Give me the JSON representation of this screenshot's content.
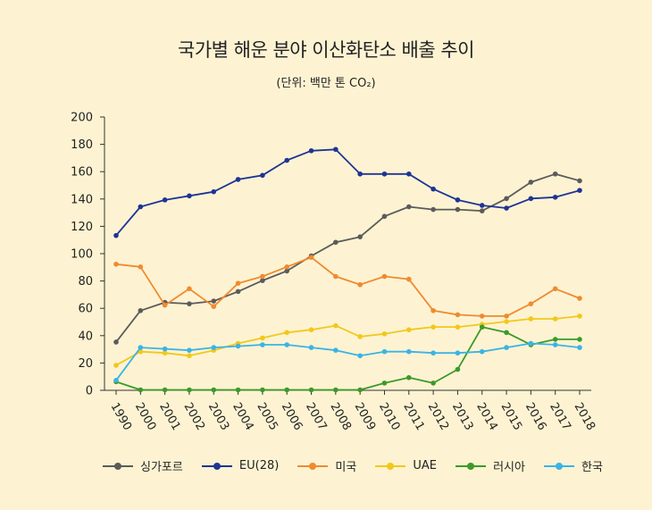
{
  "chart_data": {
    "type": "line",
    "title": "국가별 해운 분야 이산화탄소 배출 추이",
    "subtitle": "(단위: 백만 톤 CO₂)",
    "x": [
      "1990",
      "2000",
      "2001",
      "2002",
      "2003",
      "2004",
      "2005",
      "2006",
      "2007",
      "2008",
      "2009",
      "2010",
      "2011",
      "2012",
      "2013",
      "2014",
      "2015",
      "2016",
      "2017",
      "2018"
    ],
    "ylim": [
      0,
      200
    ],
    "yticks": [
      0,
      20,
      40,
      60,
      80,
      100,
      120,
      140,
      160,
      180,
      200
    ],
    "grid": false,
    "legend_position": "bottom",
    "series": [
      {
        "name": "싱가포르",
        "color": "#5b5b5b",
        "values": [
          34,
          57,
          63,
          62,
          64,
          71,
          79,
          86,
          97,
          107,
          111,
          126,
          133,
          131,
          131,
          130,
          139,
          151,
          157,
          152
        ]
      },
      {
        "name": "EU(28)",
        "color": "#1f3497",
        "values": [
          112,
          133,
          138,
          141,
          144,
          153,
          156,
          167,
          174,
          175,
          157,
          157,
          157,
          146,
          138,
          134,
          132,
          139,
          140,
          145
        ]
      },
      {
        "name": "미국",
        "color": "#f08a30",
        "values": [
          91,
          89,
          61,
          73,
          60,
          77,
          82,
          89,
          96,
          82,
          76,
          82,
          80,
          57,
          54,
          53,
          53,
          62,
          73,
          66
        ]
      },
      {
        "name": "UAE",
        "color": "#f2c81a",
        "values": [
          17,
          27,
          26,
          24,
          28,
          33,
          37,
          41,
          43,
          46,
          38,
          40,
          43,
          45,
          45,
          47,
          49,
          51,
          51,
          53
        ]
      },
      {
        "name": "러시아",
        "color": "#3c9a2a",
        "values": [
          5,
          -1,
          -1,
          -1,
          -1,
          -1,
          -1,
          -1,
          -1,
          -1,
          -1,
          4,
          8,
          4,
          14,
          45,
          41,
          32,
          36,
          36
        ]
      },
      {
        "name": "한국",
        "color": "#3bb3e6",
        "values": [
          6,
          30,
          29,
          28,
          30,
          31,
          32,
          32,
          30,
          28,
          24,
          27,
          27,
          26,
          26,
          27,
          30,
          33,
          32,
          30
        ]
      }
    ]
  }
}
